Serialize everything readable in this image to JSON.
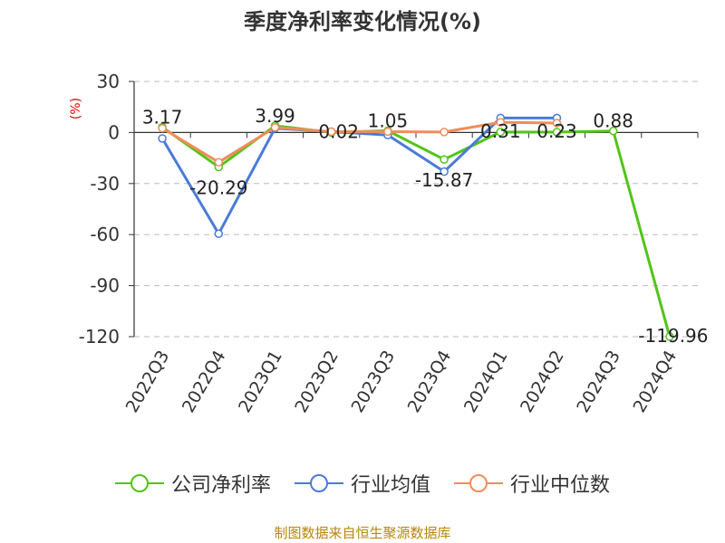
{
  "chart_data": {
    "type": "line",
    "title": "季度净利率变化情况(%)",
    "ylabel": "(%)",
    "xlabel": "",
    "categories": [
      "2022Q3",
      "2022Q4",
      "2023Q1",
      "2023Q2",
      "2023Q3",
      "2023Q4",
      "2024Q1",
      "2024Q2",
      "2024Q3",
      "2024Q4"
    ],
    "ylim": [
      -120,
      30
    ],
    "yticks": [
      30,
      0,
      -30,
      -60,
      -90,
      -120
    ],
    "grid": true,
    "legend_position": "bottom",
    "series": [
      {
        "name": "公司净利率",
        "color": "#52c41a",
        "values": [
          3.17,
          -20.29,
          3.99,
          0.02,
          1.05,
          -15.87,
          0.31,
          0.23,
          0.88,
          -119.96
        ],
        "labels": [
          "3.17",
          "-20.29",
          "3.99",
          "0.02",
          "1.05",
          "-15.87",
          "0.31",
          "0.23",
          "0.88",
          "-119.96"
        ]
      },
      {
        "name": "行业均值",
        "color": "#4a7bd8",
        "values": [
          -3.5,
          -59.5,
          2.5,
          0.5,
          -1.5,
          -23,
          8.5,
          8.5,
          null,
          null
        ]
      },
      {
        "name": "行业中位数",
        "color": "#f08c5a",
        "values": [
          2.5,
          -17.5,
          3,
          0.5,
          0.5,
          0.3,
          6,
          5.5,
          null,
          null
        ]
      }
    ]
  },
  "source_note": "制图数据来自恒生聚源数据库"
}
